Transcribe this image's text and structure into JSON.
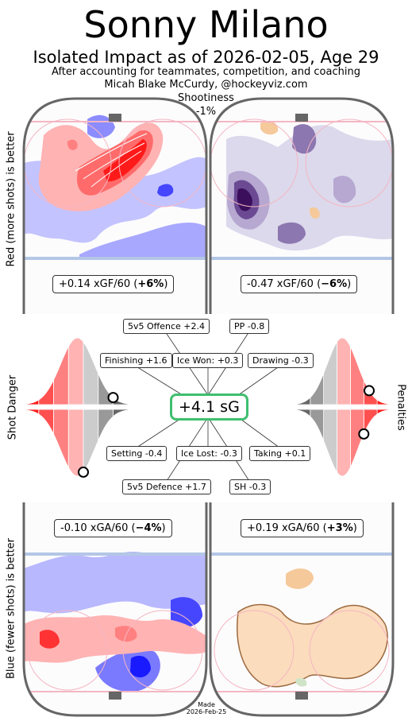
{
  "player_name": "Sonny Milano",
  "subtitle": "Isolated Impact as of 2026-02-05, Age 29",
  "line3": "After accounting for teammates, competition, and coaching",
  "line4": "Micah Blake McCurdy, @hockeyviz.com",
  "shootiness": {
    "label": "Shootiness",
    "value": "-1%"
  },
  "side_labels": {
    "top_left": "Red (more shots) is better",
    "mid_left": "Shot Danger",
    "mid_right": "Penalties",
    "bottom_left": "Blue (fewer shots) is better"
  },
  "offence": {
    "ev": {
      "text": "+0.14 xGF/60 (",
      "pct": "+6%",
      "close": ")"
    },
    "pp": {
      "text": "-0.47 xGF/60 (",
      "pct": "−6%",
      "close": ")"
    }
  },
  "defence": {
    "ev": {
      "text": "-0.10 xGA/60 (",
      "pct": "−4%",
      "close": ")"
    },
    "sh": {
      "text": "+0.19 xGA/60 (",
      "pct": "+3%",
      "close": ")"
    }
  },
  "components": {
    "ev_offence": "5v5 Offence +2.4",
    "pp": "PP -0.8",
    "finishing": "Finishing +1.6",
    "ice_won": "Ice Won: +0.3",
    "drawing": "Drawing -0.3",
    "total": "+4.1 sG",
    "setting": "Setting -0.4",
    "ice_lost": "Ice Lost: -0.3",
    "taking": "Taking +0.1",
    "ev_defence": "5v5 Defence +1.7",
    "sh": "SH -0.3"
  },
  "percentile_markers": {
    "finishing": 0.75,
    "setting": 0.5,
    "drawing": 0.2,
    "taking": 0.25
  },
  "footer": {
    "made": "Made",
    "date": "2026-Feb-25"
  },
  "colors": {
    "red_good": "#ff0000",
    "blue_good": "#0000ff",
    "pp_purple": "#3b0f5c",
    "sh_orange": "#f5c99a",
    "rink_line": "#666666",
    "blue_line": "#b3c6e6",
    "goal_line": "#f4b6c2",
    "sg_box": "#3fbf6f"
  },
  "chart_data": {
    "type": "heatmap",
    "panels": [
      {
        "name": "5v5 offence",
        "summary": "+0.14 xGF/60 (+6%)"
      },
      {
        "name": "PP offence",
        "summary": "-0.47 xGF/60 (−6%)"
      },
      {
        "name": "5v5 defence",
        "summary": "-0.10 xGA/60 (−4%)"
      },
      {
        "name": "SH defence",
        "summary": "+0.19 xGA/60 (+3%)"
      }
    ],
    "total_sg": 4.1,
    "components": [
      {
        "name": "5v5 Offence",
        "value": 2.4
      },
      {
        "name": "PP",
        "value": -0.8
      },
      {
        "name": "Finishing",
        "value": 1.6
      },
      {
        "name": "Ice Won",
        "value": 0.3
      },
      {
        "name": "Drawing",
        "value": -0.3
      },
      {
        "name": "Setting",
        "value": -0.4
      },
      {
        "name": "Ice Lost",
        "value": -0.3
      },
      {
        "name": "Taking",
        "value": 0.1
      },
      {
        "name": "5v5 Defence",
        "value": 1.7
      },
      {
        "name": "SH",
        "value": -0.3
      }
    ]
  }
}
